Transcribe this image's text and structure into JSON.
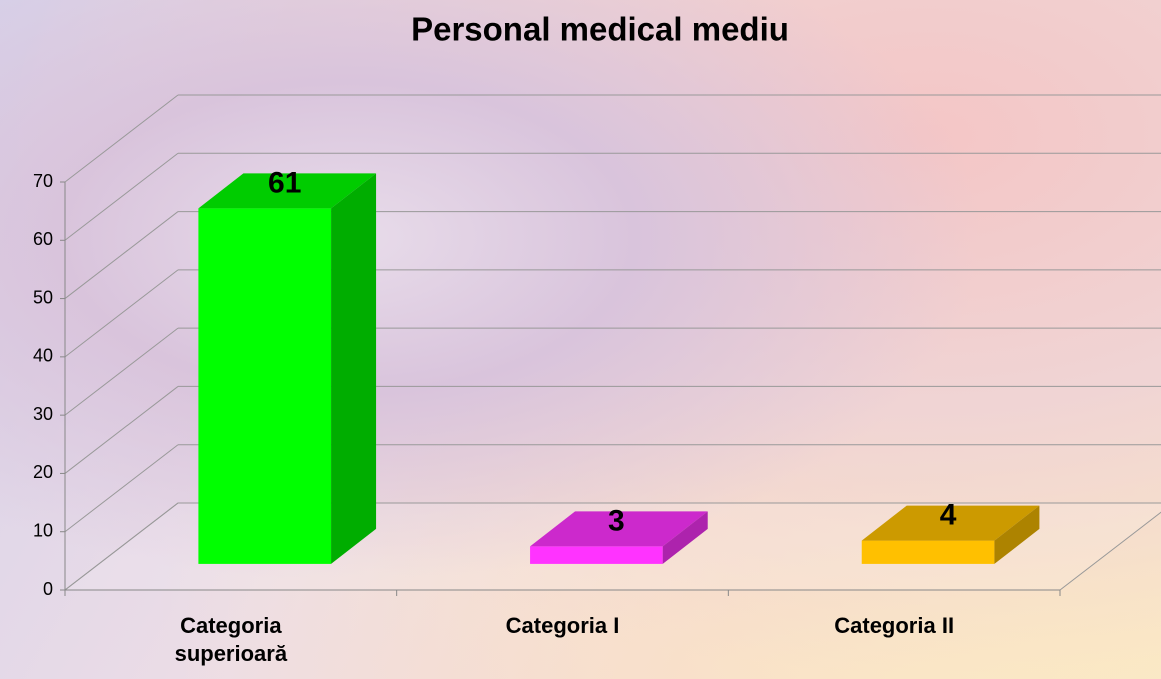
{
  "chart_data": {
    "type": "bar3d",
    "title": "Personal medical mediu",
    "categories": [
      "Categoria superioară",
      "Categoria I",
      "Categoria II"
    ],
    "values": [
      61,
      3,
      4
    ],
    "colors": [
      "#00ff00",
      "#ff33ff",
      "#ffc000"
    ],
    "ylim": [
      0,
      70
    ],
    "yticks": [
      0,
      10,
      20,
      30,
      40,
      50,
      60,
      70
    ],
    "grid": true
  }
}
